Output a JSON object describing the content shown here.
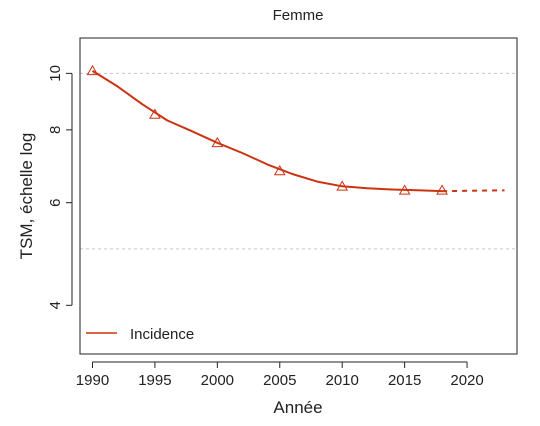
{
  "chart_data": {
    "type": "line",
    "title": "Femme",
    "xlabel": "Année",
    "ylabel": "TSM, échelle log",
    "yscale": "log",
    "xlim": [
      1989,
      2024
    ],
    "ylim": [
      3.3,
      11.5
    ],
    "x_ticks": [
      1990,
      1995,
      2000,
      2005,
      2010,
      2015,
      2020
    ],
    "y_ticks": [
      4,
      6,
      8,
      10
    ],
    "reference_lines": [
      5,
      10
    ],
    "legend": {
      "position": "bottom-left",
      "entries": [
        "Incidence"
      ]
    },
    "series": [
      {
        "name": "Incidence",
        "color": "#cc3311",
        "points": [
          {
            "x": 1990,
            "y": 10.1
          },
          {
            "x": 1995,
            "y": 8.5
          },
          {
            "x": 2000,
            "y": 7.6
          },
          {
            "x": 2005,
            "y": 6.8
          },
          {
            "x": 2010,
            "y": 6.4
          },
          {
            "x": 2015,
            "y": 6.3
          },
          {
            "x": 2018,
            "y": 6.3
          }
        ],
        "curve": [
          [
            1990,
            10.1
          ],
          [
            1992,
            9.5
          ],
          [
            1994,
            8.85
          ],
          [
            1996,
            8.3
          ],
          [
            1998,
            7.95
          ],
          [
            2000,
            7.6
          ],
          [
            2002,
            7.3
          ],
          [
            2004,
            6.98
          ],
          [
            2006,
            6.72
          ],
          [
            2008,
            6.52
          ],
          [
            2010,
            6.4
          ],
          [
            2012,
            6.35
          ],
          [
            2014,
            6.32
          ],
          [
            2016,
            6.3
          ],
          [
            2018,
            6.28
          ]
        ],
        "projection": [
          [
            2018,
            6.28
          ],
          [
            2023,
            6.3
          ]
        ]
      }
    ]
  }
}
